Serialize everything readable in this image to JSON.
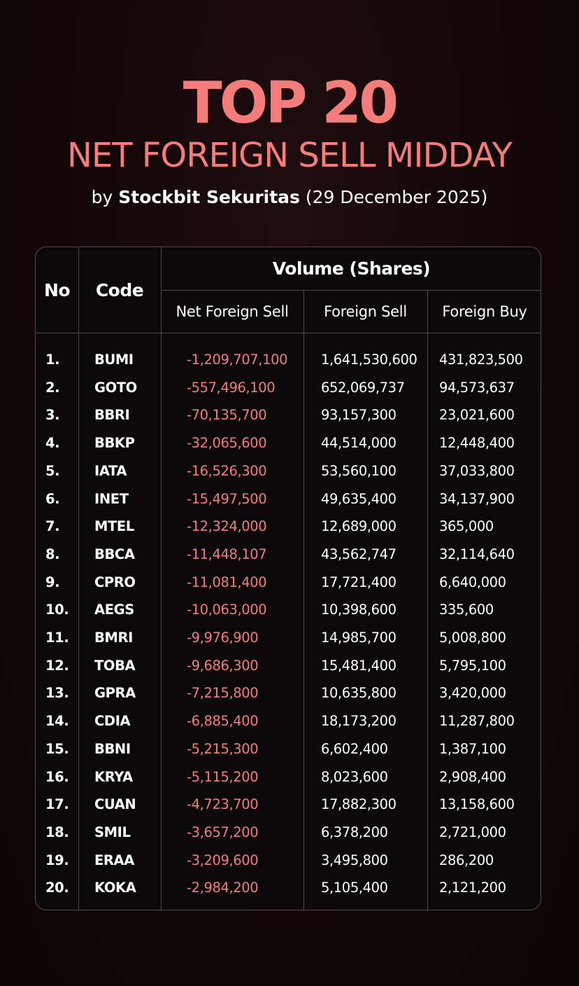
{
  "header": {
    "title_line1": "TOP 20",
    "title_line2": "NET FOREIGN SELL MIDDAY",
    "byline_prefix": "by",
    "byline_brand": "Stockbit Sekuritas",
    "byline_date": "(29 December 2025)"
  },
  "table": {
    "col_no": "No",
    "col_code": "Code",
    "group_label": "Volume (Shares)",
    "col_net_foreign_sell": "Net Foreign Sell",
    "col_foreign_sell": "Foreign Sell",
    "col_foreign_buy": "Foreign Buy",
    "rows": [
      {
        "no": "1.",
        "code": "BUMI",
        "net_foreign_sell": "-1,209,707,100",
        "foreign_sell": "1,641,530,600",
        "foreign_buy": "431,823,500"
      },
      {
        "no": "2.",
        "code": "GOTO",
        "net_foreign_sell": "-557,496,100",
        "foreign_sell": "652,069,737",
        "foreign_buy": "94,573,637"
      },
      {
        "no": "3.",
        "code": "BBRI",
        "net_foreign_sell": "-70,135,700",
        "foreign_sell": "93,157,300",
        "foreign_buy": "23,021,600"
      },
      {
        "no": "4.",
        "code": "BBKP",
        "net_foreign_sell": "-32,065,600",
        "foreign_sell": "44,514,000",
        "foreign_buy": "12,448,400"
      },
      {
        "no": "5.",
        "code": "IATA",
        "net_foreign_sell": "-16,526,300",
        "foreign_sell": "53,560,100",
        "foreign_buy": "37,033,800"
      },
      {
        "no": "6.",
        "code": "INET",
        "net_foreign_sell": "-15,497,500",
        "foreign_sell": "49,635,400",
        "foreign_buy": "34,137,900"
      },
      {
        "no": "7.",
        "code": "MTEL",
        "net_foreign_sell": "-12,324,000",
        "foreign_sell": "12,689,000",
        "foreign_buy": "365,000"
      },
      {
        "no": "8.",
        "code": "BBCA",
        "net_foreign_sell": "-11,448,107",
        "foreign_sell": "43,562,747",
        "foreign_buy": "32,114,640"
      },
      {
        "no": "9.",
        "code": "CPRO",
        "net_foreign_sell": "-11,081,400",
        "foreign_sell": "17,721,400",
        "foreign_buy": "6,640,000"
      },
      {
        "no": "10.",
        "code": "AEGS",
        "net_foreign_sell": "-10,063,000",
        "foreign_sell": "10,398,600",
        "foreign_buy": "335,600"
      },
      {
        "no": "11.",
        "code": "BMRI",
        "net_foreign_sell": "-9,976,900",
        "foreign_sell": "14,985,700",
        "foreign_buy": "5,008,800"
      },
      {
        "no": "12.",
        "code": "TOBA",
        "net_foreign_sell": "-9,686,300",
        "foreign_sell": "15,481,400",
        "foreign_buy": "5,795,100"
      },
      {
        "no": "13.",
        "code": "GPRA",
        "net_foreign_sell": "-7,215,800",
        "foreign_sell": "10,635,800",
        "foreign_buy": "3,420,000"
      },
      {
        "no": "14.",
        "code": "CDIA",
        "net_foreign_sell": "-6,885,400",
        "foreign_sell": "18,173,200",
        "foreign_buy": "11,287,800"
      },
      {
        "no": "15.",
        "code": "BBNI",
        "net_foreign_sell": "-5,215,300",
        "foreign_sell": "6,602,400",
        "foreign_buy": "1,387,100"
      },
      {
        "no": "16.",
        "code": "KRYA",
        "net_foreign_sell": "-5,115,200",
        "foreign_sell": "8,023,600",
        "foreign_buy": "2,908,400"
      },
      {
        "no": "17.",
        "code": "CUAN",
        "net_foreign_sell": "-4,723,700",
        "foreign_sell": "17,882,300",
        "foreign_buy": "13,158,600"
      },
      {
        "no": "18.",
        "code": "SMIL",
        "net_foreign_sell": "-3,657,200",
        "foreign_sell": "6,378,200",
        "foreign_buy": "2,721,000"
      },
      {
        "no": "19.",
        "code": "ERAA",
        "net_foreign_sell": "-3,209,600",
        "foreign_sell": "3,495,800",
        "foreign_buy": "286,200"
      },
      {
        "no": "20.",
        "code": "KOKA",
        "net_foreign_sell": "-2,984,200",
        "foreign_sell": "5,105,400",
        "foreign_buy": "2,121,200"
      }
    ]
  },
  "colors": {
    "accent": "#f47c7a",
    "background": "#140709",
    "text": "#ffffff",
    "border": "#55494b"
  }
}
